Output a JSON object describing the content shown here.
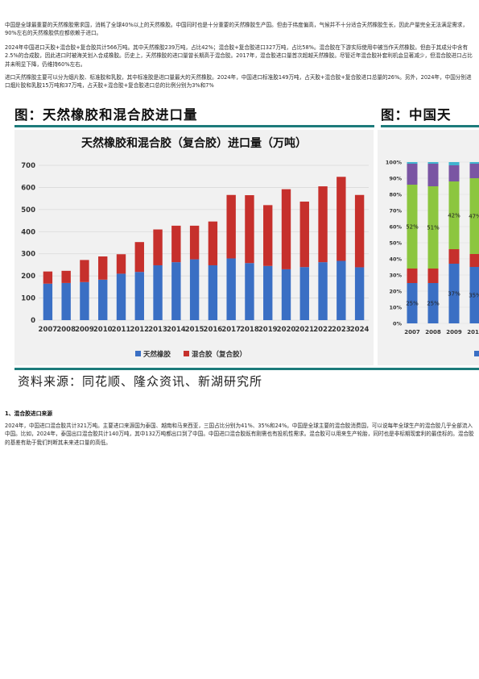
{
  "paragraphs": [
    "中国是全球最重要的天然橡胶需求国，消耗了全球40%以上的天然橡胶。中国同时也是十分重要的天然橡胶生产国。但由于纬度偏高，气候并不十分适合天然橡胶生长，因此产量完全无法满足需求，90%左右的天然橡胶供应都依赖于进口。",
    "2024年中国进口天胶+混合胶+复合胶共计566万吨。其中天然橡胶239万吨，占比42%；混合胶+复合胶进口327万吨，占比58%。混合胶在下游实际使用中被当作天然橡胶。但由于其成分中含有2.5%的合成胶，因此进口时被海关划入合成橡胶。历史上，天然橡胶的进口量曾长期高于混合胶。2017年，混合胶进口量首次超越天然橡胶。尽管近年混合胶补套利机会显著减少，但混合胶进口占比并未明显下降，仍维持60%左右。",
    "进口天然橡胶主要可以分为烟片胶、标准胶和乳胶，其中标准胶是进口量最大的天然橡胶。2024年，中国进口标准胶149万吨，占天胶+混合胶+复合胶进口总量的26%。另外，2024年，中国分别进口烟片胶和乳胶15万吨和37万吨，占天胶+混合胶+复合胶进口总的比例分别为3%和7%",
    "2024年，中国进口混合胶共计321万吨。主要进口来源国为泰国、越南和马来西亚，三国占比分别为41%、35%和24%。中国是全球主要的混合胶消费国，可以说每年全球生产的混合胶几乎全部流入中国。比如，2024年，泰国出口混合胶共计140万吨，其中132万吨都出口到了中国。中国进口混合胶既有刚需也有投机性需求。混合胶可以用来生产轮胎，同时也是非标期现套利的最佳标的。混合胶的基差有助于我们判断其未来进口量的高低。"
  ],
  "section_heading": "1、混合胶进口来源",
  "figure": {
    "title_left": "图：天然橡胶和混合胶进口量",
    "title_right": "图：中国天",
    "source": "资料来源：同花顺、隆众资讯、新湖研究所"
  },
  "colors": {
    "teal": "#1d7b7b",
    "blue": "#3a6fc4",
    "red": "#c6302c"
  },
  "chart_data": [
    {
      "type": "bar",
      "stacked": true,
      "title": "天然橡胶和混合胶（复合胶）进口量（万吨）",
      "categories": [
        "2007",
        "2008",
        "2009",
        "2010",
        "2011",
        "2012",
        "2013",
        "2014",
        "2015",
        "2016",
        "2017",
        "2018",
        "2019",
        "2020",
        "2021",
        "2022",
        "2023",
        "2024"
      ],
      "series": [
        {
          "name": "天然橡胶",
          "color": "#3a6fc4",
          "values": [
            165,
            168,
            172,
            183,
            210,
            218,
            248,
            262,
            275,
            248,
            279,
            258,
            245,
            230,
            240,
            262,
            268,
            239
          ]
        },
        {
          "name": "混合胶（复合胶）",
          "color": "#c6302c",
          "values": [
            55,
            55,
            100,
            105,
            88,
            135,
            162,
            165,
            152,
            198,
            287,
            307,
            275,
            362,
            296,
            343,
            380,
            327
          ]
        }
      ],
      "ylim": [
        0,
        700
      ],
      "yticks": [
        0,
        100,
        200,
        300,
        400,
        500,
        600,
        700
      ],
      "grid": true,
      "legend": "bottom"
    },
    {
      "type": "bar",
      "stacked": true,
      "percent": true,
      "categories": [
        "2007",
        "2008",
        "2009",
        "2010"
      ],
      "series": [
        {
          "name": "",
          "color": "#3a6fc4",
          "values": [
            25,
            25,
            37,
            35
          ]
        },
        {
          "name": "",
          "color": "#c6302c",
          "values": [
            9,
            9,
            9,
            8
          ]
        },
        {
          "name": "",
          "color": "#8cc63f",
          "values": [
            52,
            51,
            42,
            47
          ]
        },
        {
          "name": "",
          "color": "#7a55a3",
          "values": [
            13,
            14,
            10,
            9
          ]
        },
        {
          "name": "",
          "color": "#40b4cf",
          "values": [
            1,
            1,
            2,
            1
          ]
        }
      ],
      "data_labels": [
        "25%",
        "25%",
        "37%",
        "35%",
        "52%",
        "51%",
        "42%",
        "47%"
      ],
      "ylim": [
        0,
        100
      ],
      "yticks": [
        "0%",
        "10%",
        "20%",
        "30%",
        "40%",
        "50%",
        "60%",
        "70%",
        "80%",
        "90%",
        "100%"
      ]
    }
  ]
}
